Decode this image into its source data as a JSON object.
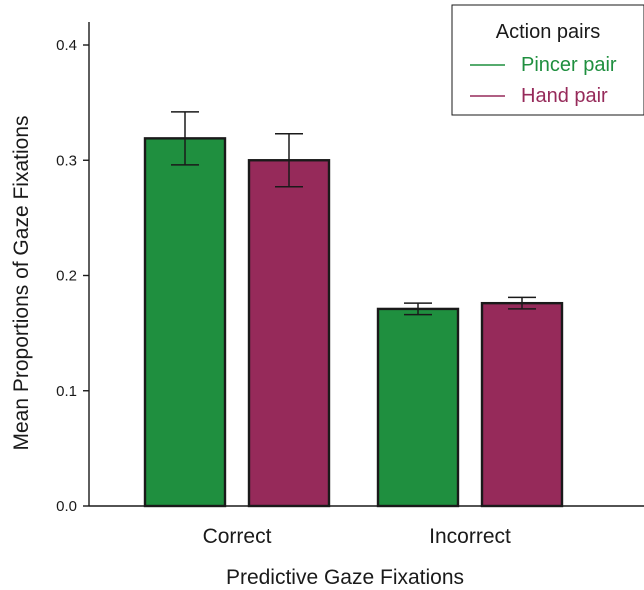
{
  "chart_data": {
    "type": "bar",
    "title": "",
    "xlabel": "Predictive Gaze Fixations",
    "ylabel": "Mean Proportions of Gaze Fixations",
    "categories": [
      "Correct",
      "Incorrect"
    ],
    "ylim": [
      0,
      0.4
    ],
    "yticks": [
      "0.0",
      "0.1",
      "0.2",
      "0.3",
      "0.4"
    ],
    "grid": false,
    "legend": {
      "title": "Action pairs",
      "placement": "top-right"
    },
    "series": [
      {
        "name": "Pincer pair",
        "color": "#1f8f3f",
        "values": [
          0.319,
          0.171
        ],
        "error": [
          0.023,
          0.005
        ]
      },
      {
        "name": "Hand pair",
        "color": "#962a5a",
        "values": [
          0.3,
          0.176
        ],
        "error": [
          0.023,
          0.005
        ]
      }
    ]
  }
}
